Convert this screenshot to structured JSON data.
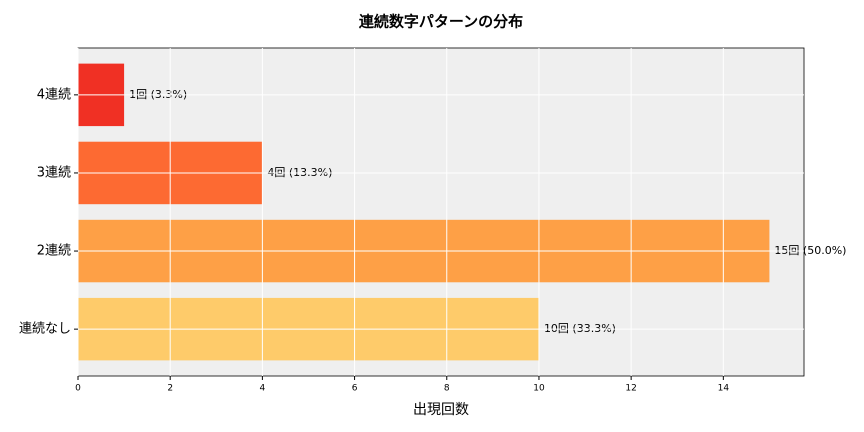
{
  "chart_data": {
    "type": "barh",
    "title": "連続数字パターンの分布",
    "x_label": "出現回数",
    "categories": [
      "連続なし",
      "2連続",
      "3連続",
      "4連続"
    ],
    "values": [
      10,
      15,
      4,
      1
    ],
    "value_labels": [
      "10回 (33.3%)",
      "15回 (50.0%)",
      "4回 (13.3%)",
      "1回 (3.3%)"
    ],
    "colors": [
      "#fecb6a",
      "#fea046",
      "#fd6a32",
      "#f03024"
    ],
    "xlim": [
      0,
      15.75
    ],
    "xticks": [
      0,
      2,
      4,
      6,
      8,
      10,
      12,
      14
    ],
    "grid": true
  }
}
